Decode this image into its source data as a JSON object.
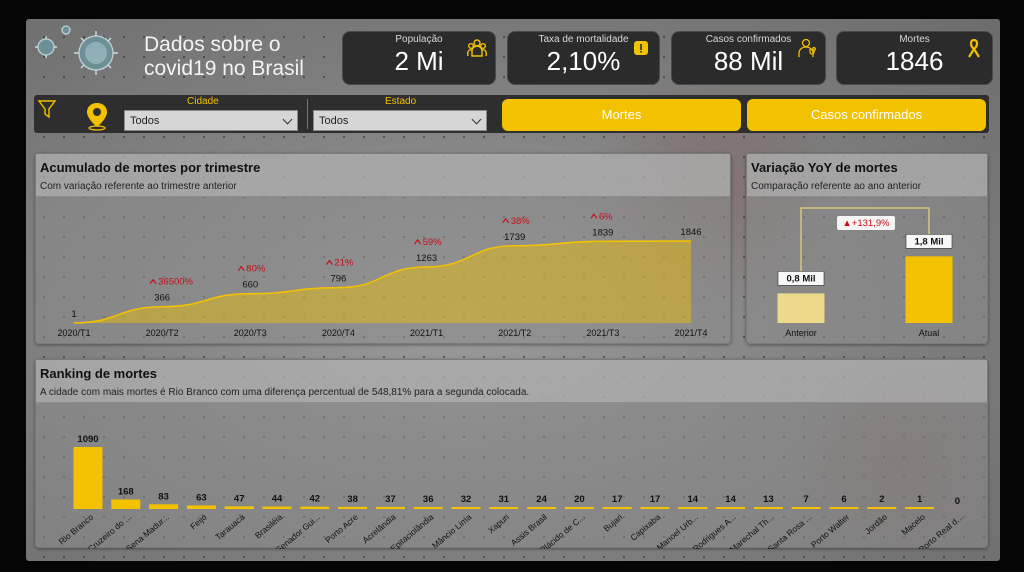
{
  "header": {
    "title_line1": "Dados sobre o",
    "title_line2": "covid19 no Brasil"
  },
  "kpis": [
    {
      "label": "População",
      "value": "2 Mi",
      "icon": "people-icon"
    },
    {
      "label": "Taxa de mortalidade",
      "value": "2,10%",
      "icon": "warning-icon"
    },
    {
      "label": "Casos confirmados",
      "value": "88 Mil",
      "icon": "doctor-icon"
    },
    {
      "label": "Mortes",
      "value": "1846",
      "icon": "ribbon-icon"
    }
  ],
  "filters": {
    "cidade_label": "Cidade",
    "cidade_value": "Todos",
    "estado_label": "Estado",
    "estado_value": "Todos"
  },
  "buttons": {
    "mortes": "Mortes",
    "casos": "Casos confirmados"
  },
  "colors": {
    "accent": "#f2c100",
    "up_arrow": "#c0101a",
    "kpi_bg": "#2b2b2b"
  },
  "panels": {
    "trimestre": {
      "title": "Acumulado de mortes por trimestre",
      "subtitle": "Com variação referente ao trimestre anterior"
    },
    "yoy": {
      "title": "Variação YoY de mortes",
      "subtitle": "Comparação referente ao ano anterior"
    },
    "ranking": {
      "title": "Ranking de mortes",
      "subtitle": "A cidade com mais mortes é Rio Branco com uma diferença percentual de 548,81% para a segunda colocada."
    }
  },
  "chart_data": [
    {
      "type": "area",
      "x": [
        "2020/T1",
        "2020/T2",
        "2020/T3",
        "2020/T4",
        "2021/T1",
        "2021/T2",
        "2021/T3",
        "2021/T4"
      ],
      "values": [
        1,
        366,
        660,
        796,
        1263,
        1739,
        1839,
        1846
      ],
      "value_labels": [
        "1",
        "366",
        "660",
        "796",
        "1263",
        "1739",
        "1839",
        "1846"
      ],
      "variation_labels": [
        "",
        "36500%",
        "80%",
        "21%",
        "59%",
        "38%",
        "6%",
        ""
      ]
    },
    {
      "type": "bar",
      "categories": [
        "Anterior",
        "Atual"
      ],
      "values": [
        0.8,
        1.8
      ],
      "value_labels": [
        "0,8 Mil",
        "1,8 Mil"
      ],
      "variation_label": "+131,9%"
    },
    {
      "type": "bar",
      "categories": [
        "Rio Branco",
        "Cruzeiro do ...",
        "Sena Madur...",
        "Feijó",
        "Tarauacá",
        "Brasiléia",
        "Senador Gui...",
        "Porto Acre",
        "Acrelândia",
        "Epitaciolândia",
        "Mâncio Lima",
        "Xapuri",
        "Assis Brasil",
        "Plácido de C...",
        "Bujari",
        "Capixaba",
        "Manoel Urb...",
        "Rodrigues A...",
        "Marechal Th...",
        "Santa Rosa ...",
        "Porto Walter",
        "Jordão",
        "Macelo",
        "Porto Real d..."
      ],
      "values": [
        1090,
        168,
        83,
        63,
        47,
        44,
        42,
        38,
        37,
        36,
        32,
        31,
        24,
        20,
        17,
        17,
        14,
        14,
        13,
        7,
        6,
        2,
        1,
        0
      ]
    }
  ]
}
